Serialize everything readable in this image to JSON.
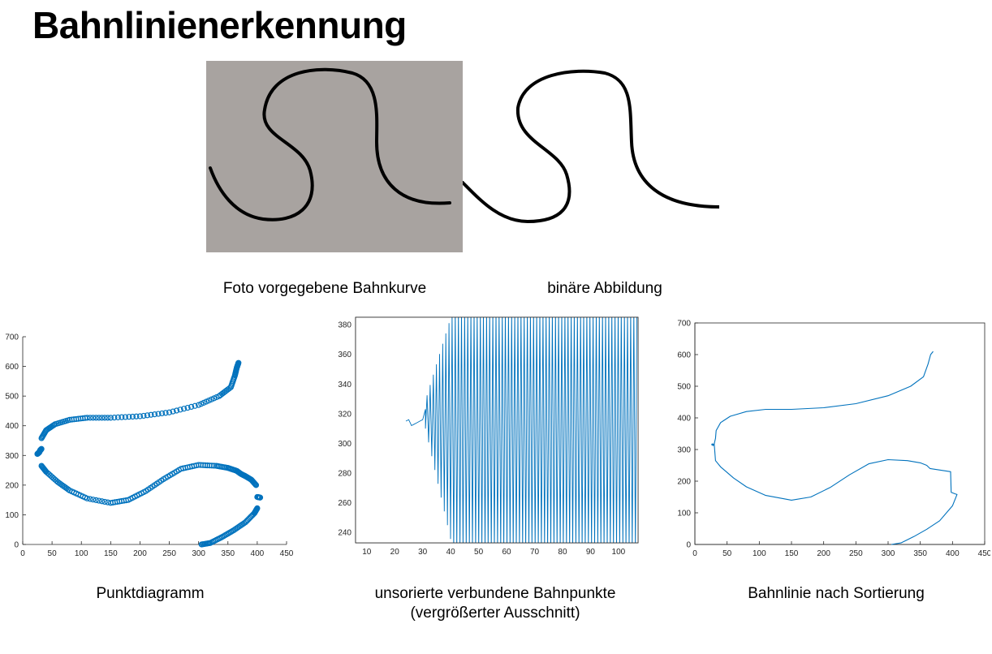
{
  "title": "Bahnlinienerkennung",
  "captions": {
    "photo": "Foto vorgegebene Bahnkurve",
    "binary": "binäre Abbildung",
    "scatter": "Punktdiagramm",
    "unsorted_line1": "unsorierte verbundene Bahnpunkte",
    "unsorted_line2": "(vergrößerter Ausschnitt)",
    "sorted": "Bahnlinie nach Sortierung"
  },
  "colors": {
    "series": "#0072bd",
    "photo_background": "#a8a3a0",
    "stroke": "#000000"
  },
  "chart_data": [
    {
      "type": "scatter",
      "title": "Punktdiagramm",
      "xlim": [
        0,
        450
      ],
      "ylim": [
        0,
        700
      ],
      "xticks": [
        0,
        50,
        100,
        150,
        200,
        250,
        300,
        350,
        400,
        450
      ],
      "yticks": [
        0,
        100,
        200,
        300,
        400,
        500,
        600,
        700
      ],
      "marker": "circle",
      "segments": [
        {
          "x": [
            32,
            40,
            55,
            80,
            110,
            150,
            200,
            250,
            300,
            335,
            355,
            362,
            365,
            368
          ],
          "y": [
            358,
            385,
            405,
            420,
            427,
            427,
            432,
            445,
            470,
            500,
            530,
            570,
            595,
            612
          ]
        },
        {
          "x": [
            25,
            28,
            30,
            32
          ],
          "y": [
            305,
            310,
            318,
            322
          ]
        },
        {
          "x": [
            32,
            40,
            60,
            80,
            110,
            150,
            180,
            210,
            240,
            270,
            300,
            330,
            350,
            365,
            372,
            380,
            390,
            398
          ],
          "y": [
            265,
            245,
            210,
            182,
            155,
            140,
            150,
            180,
            220,
            255,
            268,
            265,
            258,
            248,
            238,
            230,
            218,
            200
          ]
        },
        {
          "x": [
            400,
            405
          ],
          "y": [
            160,
            158
          ]
        },
        {
          "x": [
            305,
            320,
            340,
            360,
            380,
            395,
            400
          ],
          "y": [
            0,
            5,
            25,
            48,
            75,
            105,
            122
          ]
        }
      ]
    },
    {
      "type": "line",
      "title": "unsorierte verbundene Bahnpunkte (vergrößerter Ausschnitt)",
      "xlim": [
        6,
        107
      ],
      "ylim": [
        233,
        385
      ],
      "xticks": [
        10,
        20,
        30,
        40,
        50,
        60,
        70,
        80,
        90,
        100
      ],
      "yticks": [
        240,
        260,
        280,
        300,
        320,
        340,
        360,
        380
      ],
      "lead_in": {
        "x": [
          24,
          25,
          26,
          27,
          28,
          29,
          30,
          31
        ],
        "y": [
          315,
          316,
          312,
          313,
          314,
          315,
          316,
          323
        ]
      },
      "oscillation": {
        "x_start": 31,
        "x_end": 107,
        "period": 1.12,
        "env_low_start": 316,
        "env_high_start": 323,
        "env_low_full": 233,
        "env_high_full": 385,
        "full_at_x": 41
      }
    },
    {
      "type": "line",
      "title": "Bahnlinie nach Sortierung",
      "xlim": [
        0,
        450
      ],
      "ylim": [
        0,
        700
      ],
      "xticks": [
        0,
        50,
        100,
        150,
        200,
        250,
        300,
        350,
        400,
        450
      ],
      "yticks": [
        0,
        100,
        200,
        300,
        400,
        500,
        600,
        700
      ],
      "x": [
        370,
        366,
        362,
        355,
        335,
        300,
        250,
        200,
        150,
        110,
        80,
        55,
        40,
        33,
        32,
        30,
        26,
        27,
        28,
        30,
        32,
        40,
        60,
        80,
        110,
        150,
        180,
        210,
        240,
        270,
        300,
        330,
        350,
        360,
        365,
        397,
        398,
        404,
        407,
        400,
        380,
        360,
        340,
        320,
        305
      ],
      "y": [
        610,
        600,
        570,
        530,
        500,
        470,
        445,
        432,
        427,
        427,
        420,
        405,
        385,
        360,
        335,
        318,
        315,
        318,
        312,
        318,
        265,
        245,
        210,
        182,
        155,
        140,
        150,
        180,
        220,
        255,
        268,
        265,
        258,
        250,
        240,
        230,
        165,
        160,
        158,
        122,
        75,
        48,
        25,
        5,
        0
      ]
    }
  ]
}
